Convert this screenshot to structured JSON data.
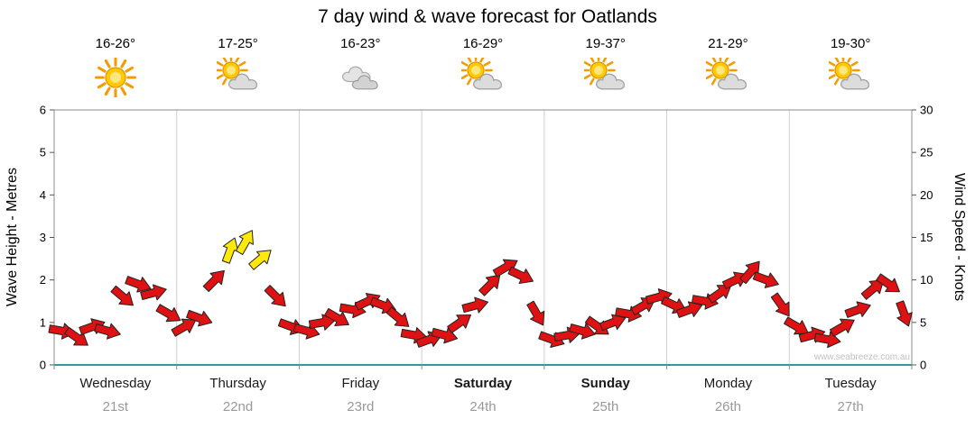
{
  "title": "7 day wind & wave forecast for Oatlands",
  "watermark": "www.seabreeze.com.au",
  "axes": {
    "left": {
      "label": "Wave Height - Metres",
      "ticks": [
        "0",
        "1",
        "2",
        "3",
        "4",
        "5",
        "6"
      ]
    },
    "right": {
      "label": "Wind Speed - Knots",
      "ticks": [
        "0",
        "5",
        "10",
        "15",
        "20",
        "25",
        "30"
      ]
    }
  },
  "days": [
    {
      "name": "Wednesday",
      "date": "21st",
      "temp": "16-26°",
      "icon": "sun",
      "bold": false
    },
    {
      "name": "Thursday",
      "date": "22nd",
      "temp": "17-25°",
      "icon": "sun-cloud",
      "bold": false
    },
    {
      "name": "Friday",
      "date": "23rd",
      "temp": "16-23°",
      "icon": "clouds",
      "bold": false
    },
    {
      "name": "Saturday",
      "date": "24th",
      "temp": "16-29°",
      "icon": "sun-cloud",
      "bold": true
    },
    {
      "name": "Sunday",
      "date": "25th",
      "temp": "19-37°",
      "icon": "sun-cloud",
      "bold": true
    },
    {
      "name": "Monday",
      "date": "26th",
      "temp": "21-29°",
      "icon": "sun-cloud",
      "bold": false
    },
    {
      "name": "Tuesday",
      "date": "27th",
      "temp": "19-30°",
      "icon": "sun-cloud",
      "bold": false
    }
  ],
  "chart_data": {
    "type": "scatter",
    "subtype": "wind-direction-arrows",
    "title": "7 day wind & wave forecast for Oatlands",
    "ylabel_left": "Wave Height - Metres",
    "ylabel_right": "Wind Speed - Knots",
    "ylim_left": [
      0,
      6
    ],
    "ylim_right": [
      0,
      30
    ],
    "grid": "vertical day separators only",
    "legend_position": "none",
    "categories": [
      "Wednesday 21st",
      "Thursday 22nd",
      "Friday 23rd",
      "Saturday 24th",
      "Sunday 25th",
      "Monday 26th",
      "Tuesday 27th"
    ],
    "samples_per_day": 8,
    "yellow_threshold": 12.5,
    "colors": {
      "red": "#DE1212",
      "yellow": "#FFE80A",
      "baseline": "#2F9C9C",
      "frame": "#8c8c8c",
      "day_grid": "#cfcfcf"
    },
    "series": [
      {
        "name": "Wind speed (knots)",
        "values": [
          4.0,
          3.2,
          4.5,
          4.0,
          8.0,
          9.5,
          8.5,
          6.0,
          4.5,
          5.5,
          10.0,
          13.5,
          14.5,
          12.5,
          8.0,
          4.5,
          4.0,
          5.0,
          5.5,
          6.5,
          7.5,
          7.0,
          5.5,
          3.5,
          3.0,
          3.5,
          5.0,
          7.0,
          9.5,
          11.5,
          10.5,
          6.0,
          3.0,
          3.5,
          4.0,
          4.5,
          5.0,
          6.0,
          7.0,
          8.0,
          7.0,
          6.5,
          7.5,
          8.5,
          10.0,
          11.0,
          10.0,
          7.0,
          4.5,
          3.5,
          3.0,
          4.5,
          6.5,
          9.0,
          9.5,
          6.0
        ]
      },
      {
        "name": "Wind direction (degrees, 0 = right, negative = up)",
        "values": [
          10,
          35,
          -20,
          15,
          40,
          20,
          -15,
          30,
          -30,
          20,
          -45,
          -70,
          -60,
          -40,
          45,
          20,
          15,
          -10,
          30,
          10,
          -25,
          20,
          40,
          10,
          -20,
          15,
          -35,
          -15,
          -45,
          -30,
          25,
          60,
          20,
          -10,
          15,
          35,
          -20,
          10,
          -30,
          -15,
          25,
          -20,
          10,
          -35,
          -25,
          -50,
          20,
          55,
          30,
          -15,
          10,
          -30,
          -20,
          -40,
          35,
          70
        ]
      }
    ]
  }
}
